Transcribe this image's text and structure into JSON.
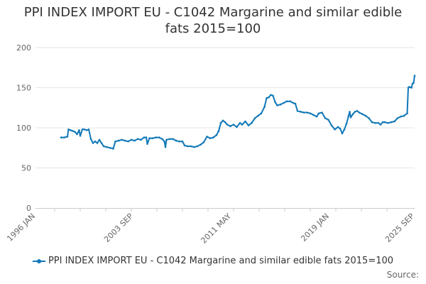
{
  "chart_data": {
    "type": "line",
    "title_line1": "PPI INDEX IMPORT EU - C1042 Margarine and similar edible",
    "title_line2": "fats 2015=100",
    "xlabel": "",
    "ylabel": "",
    "ylim": [
      0,
      200
    ],
    "yticks": [
      0,
      50,
      100,
      150,
      200
    ],
    "xticks": [
      "1996 JAN",
      "2003 SEP",
      "2011 MAY",
      "2019 JAN",
      "2025 SEP"
    ],
    "grid": true,
    "legend": "bottom",
    "series": [
      {
        "name": "PPI INDEX IMPORT EU - C1042 Margarine and similar edible fats 2015=100",
        "color": "#1078B8",
        "points": [
          [
            "1998-01",
            88
          ],
          [
            "1998-04",
            88
          ],
          [
            "1998-07",
            89
          ],
          [
            "1998-08",
            98
          ],
          [
            "1998-10",
            97
          ],
          [
            "1998-12",
            96
          ],
          [
            "1999-02",
            95
          ],
          [
            "1999-04",
            92
          ],
          [
            "1999-06",
            97
          ],
          [
            "1999-07",
            90
          ],
          [
            "1999-09",
            98
          ],
          [
            "1999-11",
            98
          ],
          [
            "2000-01",
            97
          ],
          [
            "2000-03",
            98
          ],
          [
            "2000-05",
            86
          ],
          [
            "2000-07",
            81
          ],
          [
            "2000-09",
            83
          ],
          [
            "2000-11",
            81
          ],
          [
            "2001-01",
            85
          ],
          [
            "2001-03",
            81
          ],
          [
            "2001-05",
            77
          ],
          [
            "2001-08",
            76
          ],
          [
            "2001-11",
            75
          ],
          [
            "2002-02",
            74
          ],
          [
            "2002-04",
            83
          ],
          [
            "2002-07",
            84
          ],
          [
            "2002-10",
            85
          ],
          [
            "2003-01",
            84
          ],
          [
            "2003-04",
            83
          ],
          [
            "2003-07",
            85
          ],
          [
            "2003-10",
            84
          ],
          [
            "2004-01",
            86
          ],
          [
            "2004-04",
            85
          ],
          [
            "2004-07",
            88
          ],
          [
            "2004-09",
            88
          ],
          [
            "2004-10",
            80
          ],
          [
            "2004-12",
            87
          ],
          [
            "2005-03",
            87
          ],
          [
            "2005-06",
            88
          ],
          [
            "2005-09",
            88
          ],
          [
            "2005-12",
            86
          ],
          [
            "2006-02",
            83
          ],
          [
            "2006-03",
            76
          ],
          [
            "2006-04",
            85
          ],
          [
            "2006-07",
            86
          ],
          [
            "2006-10",
            86
          ],
          [
            "2007-01",
            84
          ],
          [
            "2007-04",
            83
          ],
          [
            "2007-07",
            83
          ],
          [
            "2007-09",
            78
          ],
          [
            "2007-12",
            77
          ],
          [
            "2008-03",
            77
          ],
          [
            "2008-06",
            76
          ],
          [
            "2008-09",
            77
          ],
          [
            "2008-12",
            79
          ],
          [
            "2009-03",
            82
          ],
          [
            "2009-06",
            89
          ],
          [
            "2009-09",
            87
          ],
          [
            "2009-12",
            88
          ],
          [
            "2010-03",
            91
          ],
          [
            "2010-05",
            96
          ],
          [
            "2010-07",
            106
          ],
          [
            "2010-09",
            109
          ],
          [
            "2010-11",
            107
          ],
          [
            "2011-01",
            104
          ],
          [
            "2011-04",
            102
          ],
          [
            "2011-07",
            104
          ],
          [
            "2011-10",
            101
          ],
          [
            "2012-01",
            106
          ],
          [
            "2012-03",
            104
          ],
          [
            "2012-06",
            108
          ],
          [
            "2012-09",
            103
          ],
          [
            "2012-12",
            106
          ],
          [
            "2013-03",
            112
          ],
          [
            "2013-06",
            115
          ],
          [
            "2013-09",
            118
          ],
          [
            "2013-12",
            126
          ],
          [
            "2014-02",
            137
          ],
          [
            "2014-04",
            138
          ],
          [
            "2014-06",
            141
          ],
          [
            "2014-08",
            140
          ],
          [
            "2014-10",
            132
          ],
          [
            "2014-12",
            128
          ],
          [
            "2015-03",
            129
          ],
          [
            "2015-06",
            131
          ],
          [
            "2015-09",
            133
          ],
          [
            "2015-12",
            133
          ],
          [
            "2016-03",
            131
          ],
          [
            "2016-05",
            130
          ],
          [
            "2016-07",
            121
          ],
          [
            "2016-10",
            120
          ],
          [
            "2017-01",
            119
          ],
          [
            "2017-04",
            119
          ],
          [
            "2017-07",
            118
          ],
          [
            "2017-10",
            116
          ],
          [
            "2018-01",
            114
          ],
          [
            "2018-03",
            118
          ],
          [
            "2018-06",
            119
          ],
          [
            "2018-09",
            112
          ],
          [
            "2018-12",
            110
          ],
          [
            "2019-03",
            103
          ],
          [
            "2019-06",
            98
          ],
          [
            "2019-09",
            101
          ],
          [
            "2019-11",
            99
          ],
          [
            "2020-01",
            93
          ],
          [
            "2020-03",
            98
          ],
          [
            "2020-05",
            105
          ],
          [
            "2020-07",
            115
          ],
          [
            "2020-08",
            120
          ],
          [
            "2020-09",
            113
          ],
          [
            "2020-11",
            117
          ],
          [
            "2021-01",
            120
          ],
          [
            "2021-03",
            121
          ],
          [
            "2021-05",
            119
          ],
          [
            "2021-08",
            117
          ],
          [
            "2021-11",
            115
          ],
          [
            "2022-02",
            112
          ],
          [
            "2022-05",
            107
          ],
          [
            "2022-08",
            106
          ],
          [
            "2022-11",
            106
          ],
          [
            "2023-01",
            104
          ],
          [
            "2023-03",
            107
          ],
          [
            "2023-05",
            107
          ],
          [
            "2023-08",
            106
          ],
          [
            "2023-11",
            107
          ],
          [
            "2024-02",
            108
          ],
          [
            "2024-05",
            112
          ],
          [
            "2024-08",
            114
          ],
          [
            "2024-11",
            115
          ],
          [
            "2025-02",
            118
          ],
          [
            "2025-03",
            150
          ],
          [
            "2025-04",
            151
          ],
          [
            "2025-06",
            150
          ],
          [
            "2025-07",
            155
          ],
          [
            "2025-08",
            156
          ],
          [
            "2025-09",
            165
          ]
        ]
      }
    ]
  },
  "legend_label": "PPI INDEX IMPORT EU - C1042 Margarine and similar edible fats 2015=100",
  "source_label": "Source:"
}
